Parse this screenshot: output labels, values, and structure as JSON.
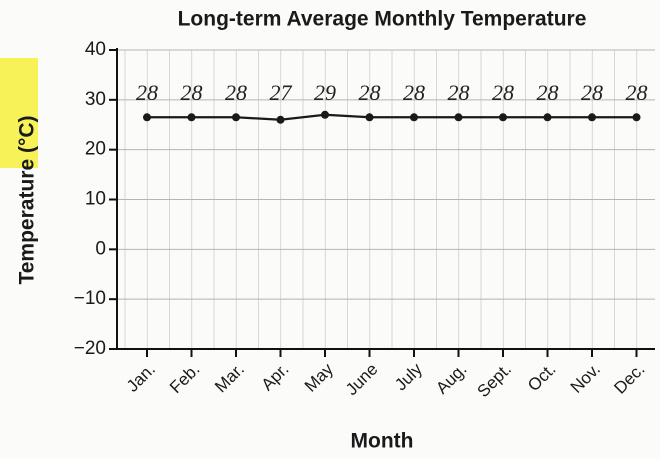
{
  "chart_data": {
    "type": "line",
    "title": "Long-term Average Monthly Temperature",
    "x_label": "Month",
    "y_label": "Temperature (°C)",
    "categories": [
      "Jan.",
      "Feb.",
      "Mar.",
      "Apr.",
      "May",
      "June",
      "July",
      "Aug.",
      "Sept.",
      "Oct.",
      "Nov.",
      "Dec."
    ],
    "series": [
      {
        "name": "Temperature",
        "color": "#1a1a1a",
        "values": [
          26.5,
          26.5,
          26.5,
          26,
          27,
          26.5,
          26.5,
          26.5,
          26.5,
          26.5,
          26.5,
          26.5
        ]
      }
    ],
    "annotations": [
      "28",
      "28",
      "28",
      "27",
      "29",
      "28",
      "28",
      "28",
      "28",
      "28",
      "28",
      "28"
    ],
    "ylim": [
      -20,
      40
    ],
    "yticks": [
      {
        "value": -20,
        "label": "−20"
      },
      {
        "value": -10,
        "label": "−10"
      },
      0,
      10,
      20,
      30,
      40
    ],
    "grid": true
  }
}
